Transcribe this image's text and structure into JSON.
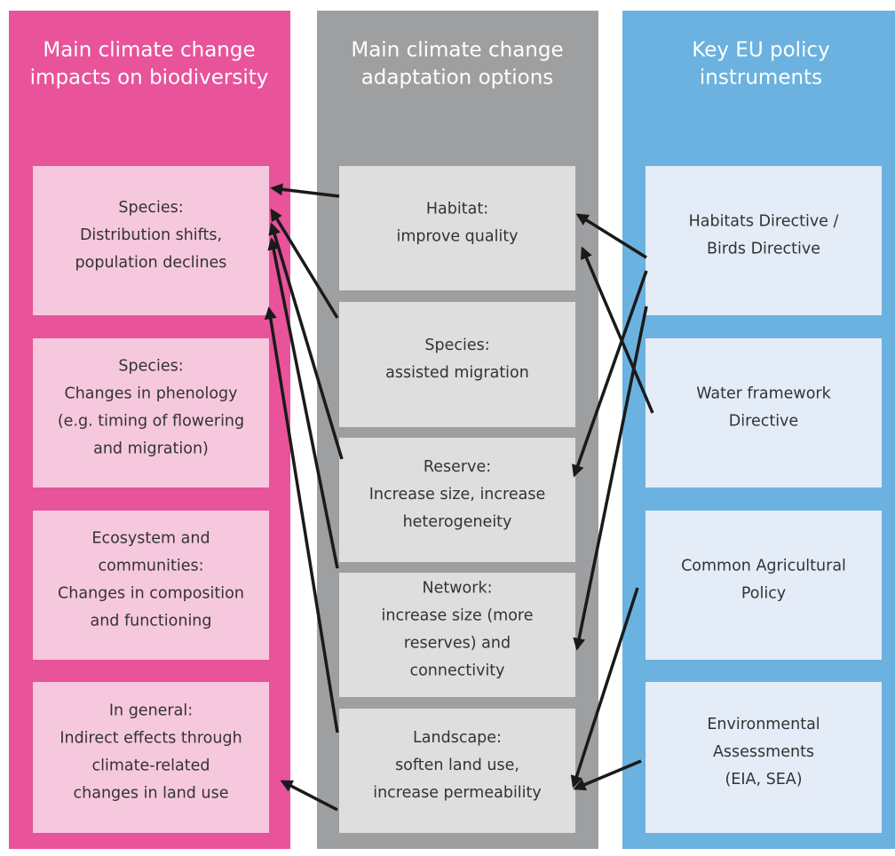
{
  "columns": [
    {
      "title": [
        "Main climate change",
        "impacts on biodiversity"
      ],
      "boxes": [
        [
          "Species:",
          "Distribution shifts,",
          "population declines"
        ],
        [
          "Species:",
          "Changes in phenology",
          "(e.g. timing of flowering",
          "and migration)"
        ],
        [
          "Ecosystem and",
          "communities:",
          "Changes in composition",
          "and functioning"
        ],
        [
          "In general:",
          "Indirect effects through",
          "climate-related",
          "changes in land use"
        ]
      ]
    },
    {
      "title": [
        "Main climate change",
        "adaptation options"
      ],
      "boxes": [
        [
          "Habitat:",
          "improve quality"
        ],
        [
          "Species:",
          "assisted migration"
        ],
        [
          "Reserve:",
          "Increase size, increase",
          "heterogeneity"
        ],
        [
          "Network:",
          "increase size (more",
          "reserves) and",
          "connectivity"
        ],
        [
          "Landscape:",
          "soften land use,",
          "increase permeability"
        ]
      ]
    },
    {
      "title": [
        "Key EU policy",
        "instruments"
      ],
      "boxes": [
        [
          "Habitats Directive /",
          "Birds Directive"
        ],
        [
          "Water framework",
          "Directive"
        ],
        [
          "Common Agricultural",
          "Policy"
        ],
        [
          "Environmental",
          "Assessments",
          "(EIA, SEA)"
        ]
      ]
    }
  ]
}
